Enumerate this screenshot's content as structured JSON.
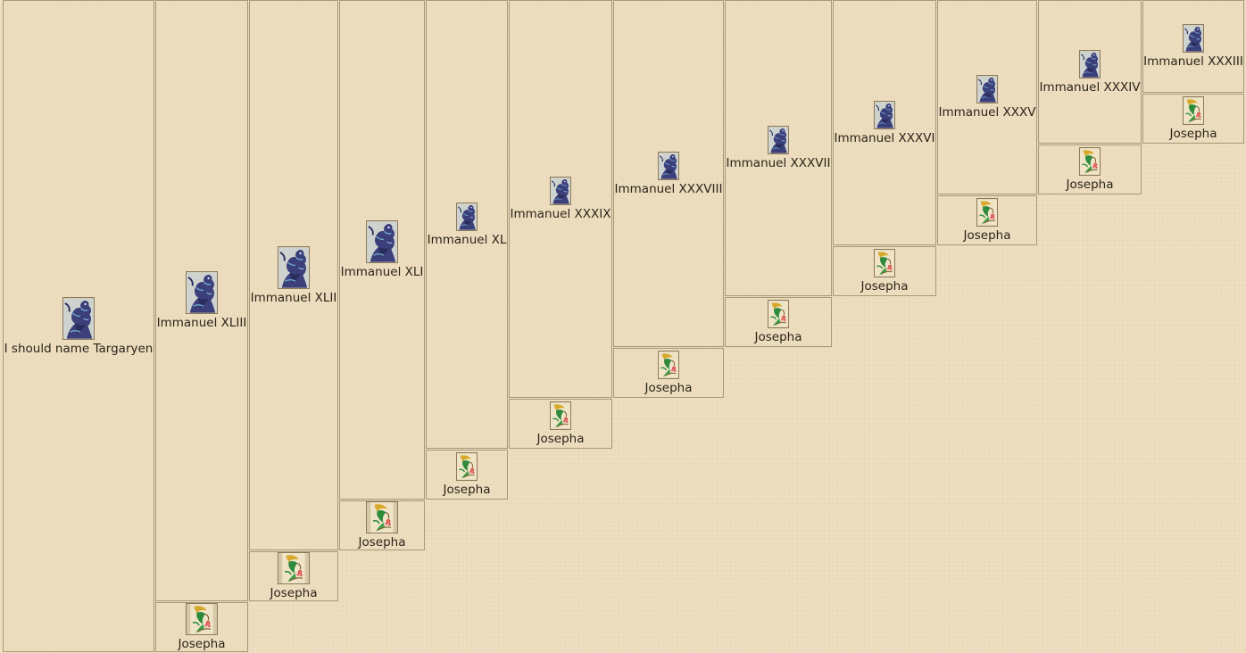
{
  "dragon_icons": {
    "sire": "blue-dragon-icon",
    "dam": "green-dragon-icon"
  },
  "colors": {
    "background": "#ecdcbd",
    "border": "#a8987a",
    "text": "#2b2418",
    "blue_dragon_body": "#3b3f7a",
    "blue_dragon_accent": "#6ea7c9",
    "green_dragon_body": "#2f8a3c",
    "green_dragon_accent": "#d8a82a",
    "flower": "#d8434a"
  },
  "lineage": {
    "root": {
      "name": "I should name Targaryen",
      "icon": "blue-dragon-icon"
    },
    "generations": [
      {
        "sire": {
          "name": "Immanuel XLIII",
          "icon": "blue-dragon-icon"
        },
        "dam": {
          "name": "Josepha",
          "icon": "green-dragon-icon"
        }
      },
      {
        "sire": {
          "name": "Immanuel XLII",
          "icon": "blue-dragon-icon"
        },
        "dam": {
          "name": "Josepha",
          "icon": "green-dragon-icon"
        }
      },
      {
        "sire": {
          "name": "Immanuel XLI",
          "icon": "blue-dragon-icon"
        },
        "dam": {
          "name": "Josepha",
          "icon": "green-dragon-icon"
        }
      },
      {
        "sire": {
          "name": "Immanuel XL",
          "icon": "blue-dragon-icon"
        },
        "dam": {
          "name": "Josepha",
          "icon": "green-dragon-icon"
        }
      },
      {
        "sire": {
          "name": "Immanuel XXXIX",
          "icon": "blue-dragon-icon"
        },
        "dam": {
          "name": "Josepha",
          "icon": "green-dragon-icon"
        }
      },
      {
        "sire": {
          "name": "Immanuel XXXVIII",
          "icon": "blue-dragon-icon"
        },
        "dam": {
          "name": "Josepha",
          "icon": "green-dragon-icon"
        }
      },
      {
        "sire": {
          "name": "Immanuel XXXVII",
          "icon": "blue-dragon-icon"
        },
        "dam": {
          "name": "Josepha",
          "icon": "green-dragon-icon"
        }
      },
      {
        "sire": {
          "name": "Immanuel XXXVI",
          "icon": "blue-dragon-icon"
        },
        "dam": {
          "name": "Josepha",
          "icon": "green-dragon-icon"
        }
      },
      {
        "sire": {
          "name": "Immanuel XXXV",
          "icon": "blue-dragon-icon"
        },
        "dam": {
          "name": "Josepha",
          "icon": "green-dragon-icon"
        }
      },
      {
        "sire": {
          "name": "Immanuel XXXIV",
          "icon": "blue-dragon-icon"
        },
        "dam": {
          "name": "Josepha",
          "icon": "green-dragon-icon"
        }
      },
      {
        "sire": {
          "name": "Immanuel XXXIII",
          "icon": "blue-dragon-icon"
        },
        "dam": {
          "name": "Josepha",
          "icon": "green-dragon-icon"
        }
      }
    ]
  }
}
